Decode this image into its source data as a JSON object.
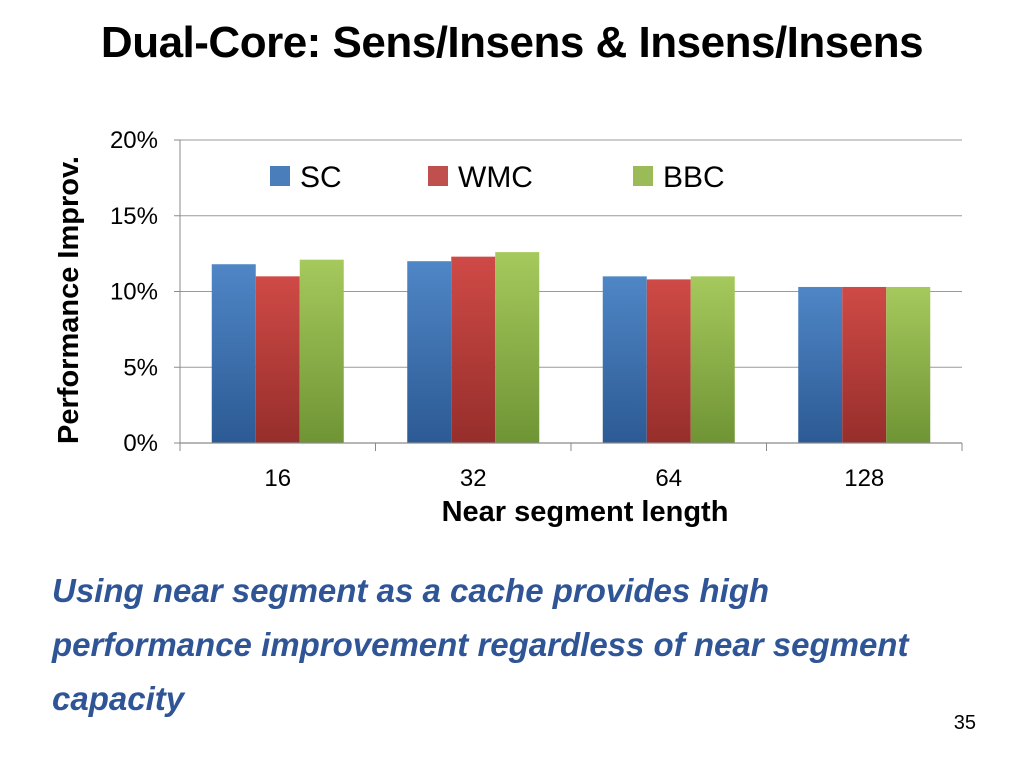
{
  "slide": {
    "title": "Dual-Core: Sens/Insens & Insens/Insens",
    "takeaway": "Using near segment as a cache provides high performance improvement regardless of near segment capacity",
    "page_number": "35"
  },
  "chart_data": {
    "type": "bar",
    "title": "",
    "xlabel": "Near segment length",
    "ylabel": "Performance Improv.",
    "categories": [
      "16",
      "32",
      "64",
      "128"
    ],
    "series": [
      {
        "name": "SC",
        "color": "#4a7ebb",
        "values": [
          11.8,
          12.0,
          11.0,
          10.3
        ]
      },
      {
        "name": "WMC",
        "color": "#c0504d",
        "values": [
          11.0,
          12.3,
          10.8,
          10.3
        ]
      },
      {
        "name": "BBC",
        "color": "#9bbb59",
        "values": [
          12.1,
          12.6,
          11.0,
          10.3
        ]
      }
    ],
    "ylim": [
      0,
      20
    ],
    "yticks": [
      0,
      5,
      10,
      15,
      20
    ],
    "ytick_labels": [
      "0%",
      "5%",
      "10%",
      "15%",
      "20%"
    ],
    "grid": true,
    "legend_position": "top"
  }
}
